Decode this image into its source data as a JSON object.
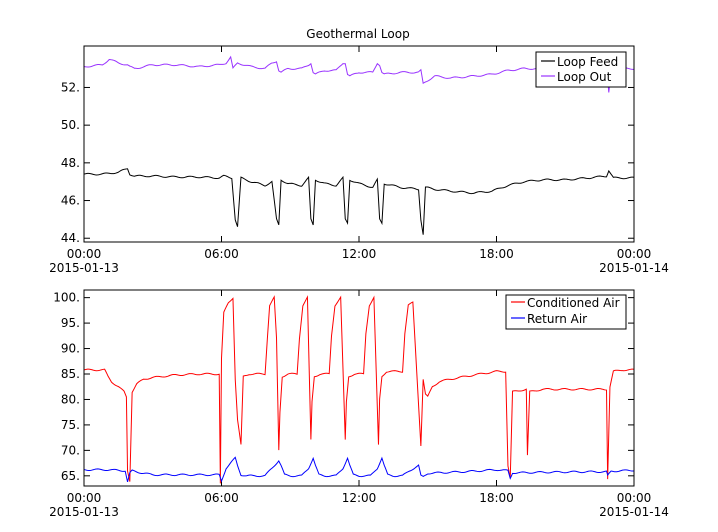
{
  "chart_data": [
    {
      "type": "line",
      "title": "Geothermal Loop",
      "xlabel": "",
      "ylabel": "",
      "x_ticks": [
        "00:00",
        "06:00",
        "12:00",
        "18:00",
        "00:00"
      ],
      "x_tick_dates": [
        "2015-01-13",
        "",
        "",
        "",
        "2015-01-14"
      ],
      "x_range_hours": [
        0,
        24
      ],
      "ylim": [
        43.8,
        54.2
      ],
      "y_ticks": [
        "44.",
        "46.",
        "48.",
        "50.",
        "52."
      ],
      "y_tick_values": [
        44,
        46,
        48,
        50,
        52
      ],
      "legend_position": "top-right",
      "series": [
        {
          "name": "Loop Feed",
          "color": "#000000",
          "x": [
            0,
            0.8,
            1.5,
            1.9,
            2.0,
            2.2,
            3,
            4,
            5,
            5.9,
            6.1,
            6.45,
            6.6,
            6.7,
            6.85,
            7.3,
            7.9,
            8.2,
            8.4,
            8.5,
            8.6,
            8.9,
            9.5,
            9.8,
            9.9,
            10.0,
            10.1,
            10.5,
            11.0,
            11.3,
            11.4,
            11.5,
            11.6,
            12,
            12.6,
            12.8,
            12.9,
            13.0,
            13.1,
            13.8,
            14.6,
            14.7,
            14.8,
            14.9,
            15.3,
            16,
            17,
            17.8,
            18.5,
            19.2,
            20,
            21,
            22,
            22.8,
            22.9,
            23.1,
            24
          ],
          "y": [
            47.4,
            47.4,
            47.5,
            47.7,
            47.4,
            47.3,
            47.3,
            47.25,
            47.25,
            47.2,
            47.3,
            47.2,
            45.0,
            44.6,
            47.2,
            47.0,
            46.8,
            47.0,
            45.0,
            44.7,
            47.1,
            46.9,
            46.8,
            47.2,
            45.0,
            44.7,
            47.1,
            46.9,
            46.8,
            47.2,
            45.0,
            44.8,
            47.1,
            46.9,
            46.7,
            47.1,
            45.0,
            44.8,
            46.9,
            46.7,
            46.6,
            45.0,
            44.2,
            46.7,
            46.6,
            46.5,
            46.4,
            46.5,
            46.8,
            47.0,
            47.1,
            47.1,
            47.2,
            47.3,
            47.6,
            47.2,
            47.2
          ]
        },
        {
          "name": "Loop Out",
          "color": "#9933ff",
          "x": [
            0,
            0.8,
            1.1,
            1.5,
            1.9,
            2.0,
            2.2,
            3,
            4,
            5,
            5.9,
            6.2,
            6.4,
            6.5,
            6.7,
            7.3,
            7.9,
            8.2,
            8.4,
            8.5,
            8.6,
            8.9,
            9.5,
            9.8,
            9.9,
            10.0,
            10.1,
            10.5,
            11.0,
            11.3,
            11.4,
            11.5,
            11.6,
            12,
            12.6,
            12.8,
            12.9,
            13.0,
            13.1,
            13.8,
            14.6,
            14.7,
            14.8,
            14.9,
            15.3,
            16,
            17,
            17.8,
            18.5,
            19.2,
            20,
            21,
            22,
            22.8,
            22.9,
            23.0,
            23.1,
            24
          ],
          "y": [
            53.1,
            53.2,
            53.5,
            53.3,
            53.2,
            53.1,
            53.0,
            53.2,
            53.2,
            53.1,
            53.2,
            53.3,
            53.6,
            53.0,
            53.3,
            53.1,
            53.0,
            53.3,
            53.4,
            52.9,
            52.8,
            53.0,
            53.0,
            53.2,
            53.3,
            52.8,
            52.7,
            52.9,
            52.9,
            53.3,
            53.3,
            52.7,
            52.6,
            52.8,
            52.8,
            53.3,
            53.2,
            52.8,
            52.7,
            52.8,
            52.8,
            52.9,
            52.2,
            52.3,
            52.6,
            52.5,
            52.6,
            52.7,
            52.9,
            53.0,
            53.0,
            53.0,
            53.1,
            53.1,
            51.7,
            52.9,
            53.0,
            53.0
          ]
        }
      ]
    },
    {
      "type": "line",
      "title": "",
      "xlabel": "",
      "ylabel": "",
      "x_ticks": [
        "00:00",
        "06:00",
        "12:00",
        "18:00",
        "00:00"
      ],
      "x_tick_dates": [
        "2015-01-13",
        "",
        "",
        "",
        "2015-01-14"
      ],
      "x_range_hours": [
        0,
        24
      ],
      "ylim": [
        63,
        101.5
      ],
      "y_ticks": [
        "65.",
        "70.",
        "75.",
        "80.",
        "85.",
        "90.",
        "95.",
        "100."
      ],
      "y_tick_values": [
        65,
        70,
        75,
        80,
        85,
        90,
        95,
        100
      ],
      "legend_position": "top-right",
      "series": [
        {
          "name": "Conditioned Air",
          "color": "#ff0000",
          "x": [
            0,
            0.9,
            1.05,
            1.2,
            1.5,
            1.75,
            1.85,
            1.9,
            2.0,
            2.1,
            2.3,
            2.6,
            3,
            4,
            5,
            5.9,
            5.95,
            6.0,
            6.1,
            6.3,
            6.5,
            6.6,
            6.7,
            6.85,
            6.95,
            7.2,
            7.9,
            8.0,
            8.1,
            8.3,
            8.4,
            8.5,
            8.55,
            8.65,
            8.9,
            9.3,
            9.4,
            9.55,
            9.75,
            9.9,
            9.95,
            10.05,
            10.3,
            10.7,
            10.8,
            10.95,
            11.2,
            11.4,
            11.45,
            11.55,
            11.8,
            12.2,
            12.3,
            12.45,
            12.65,
            12.85,
            12.9,
            13.0,
            13.2,
            13.9,
            14.0,
            14.15,
            14.35,
            14.7,
            14.8,
            14.9,
            15.0,
            15.2,
            15.5,
            16,
            17,
            18,
            18.4,
            18.5,
            18.6,
            18.7,
            19.3,
            19.35,
            19.45,
            20,
            22,
            22.8,
            22.85,
            22.95,
            23.1,
            23.5,
            24
          ],
          "y": [
            85.8,
            85.8,
            84.5,
            83.5,
            82.5,
            81.5,
            80.5,
            66,
            64,
            81.5,
            83.0,
            84.0,
            84.3,
            84.8,
            85.0,
            85.0,
            63.5,
            88.0,
            97.0,
            99.0,
            100.0,
            84.0,
            76.0,
            71.0,
            84.5,
            85.0,
            85.0,
            92.0,
            98.5,
            100.0,
            92.0,
            70.0,
            77.5,
            84.5,
            85.0,
            85.0,
            92.0,
            98.5,
            100.0,
            72.0,
            79.5,
            84.5,
            85.0,
            85.0,
            92.5,
            98.5,
            100.0,
            72.0,
            79.5,
            84.5,
            85.0,
            85.0,
            93.0,
            98.5,
            100.0,
            71.0,
            80.0,
            84.5,
            85.5,
            85.5,
            93.0,
            98.5,
            99.0,
            71.0,
            84.0,
            81.0,
            80.5,
            82.5,
            83.5,
            84.0,
            84.8,
            85.5,
            85.5,
            67.0,
            64.5,
            81.5,
            82.0,
            69.0,
            81.5,
            82.0,
            82.0,
            82.0,
            64.5,
            82.5,
            85.5,
            85.8,
            85.8
          ],
          "x_note": ""
        },
        {
          "name": "Return Air",
          "color": "#0000ff",
          "x": [
            0,
            1,
            1.8,
            1.9,
            2.0,
            2.1,
            2.5,
            3,
            4,
            5,
            5.9,
            6.0,
            6.2,
            6.6,
            6.7,
            6.85,
            7.1,
            7.9,
            8.2,
            8.5,
            8.6,
            8.75,
            9.0,
            9.5,
            9.8,
            10.0,
            10.1,
            10.25,
            10.5,
            11.0,
            11.3,
            11.5,
            11.6,
            11.75,
            12.0,
            12.5,
            12.8,
            13.0,
            13.1,
            13.25,
            13.5,
            13.9,
            14.2,
            14.6,
            14.7,
            14.8,
            15.0,
            16,
            17,
            18,
            18.5,
            18.6,
            18.7,
            19,
            20,
            22,
            22.8,
            22.85,
            23.0,
            24
          ],
          "y": [
            66.2,
            66.2,
            66.0,
            63.8,
            65.5,
            66.0,
            65.6,
            65.2,
            65.2,
            65.2,
            65.2,
            64.0,
            66.5,
            68.5,
            67.0,
            65.2,
            65.0,
            65.0,
            66.5,
            68.0,
            67.0,
            65.2,
            65.0,
            65.0,
            66.5,
            68.5,
            67.0,
            65.2,
            65.0,
            65.0,
            66.5,
            68.5,
            67.0,
            65.2,
            65.0,
            65.0,
            66.5,
            68.5,
            67.0,
            65.2,
            65.0,
            65.0,
            66.0,
            67.0,
            65.0,
            64.8,
            65.5,
            65.7,
            65.9,
            66.2,
            66.0,
            64.5,
            65.6,
            65.6,
            65.7,
            65.8,
            65.8,
            65.0,
            65.9,
            66.1
          ]
        }
      ]
    }
  ]
}
